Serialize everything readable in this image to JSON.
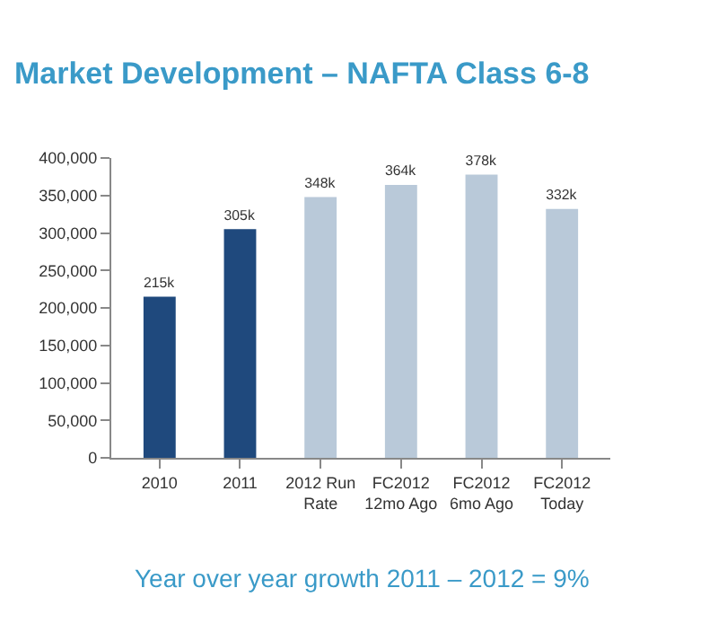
{
  "chart_data": {
    "type": "bar",
    "title": "Market Development – NAFTA Class 6-8",
    "categories": [
      "2010",
      "2011",
      "2012 Run\nRate",
      "FC2012\n12mo Ago",
      "FC2012\n6mo Ago",
      "FC2012\nToday"
    ],
    "values": [
      215000,
      305000,
      348000,
      364000,
      378000,
      332000
    ],
    "value_labels": [
      "215k",
      "305k",
      "348k",
      "364k",
      "378k",
      "332k"
    ],
    "colors": [
      "#1f497d",
      "#1f497d",
      "#b9c9d9",
      "#b9c9d9",
      "#b9c9d9",
      "#b9c9d9"
    ],
    "ylim": [
      0,
      400000
    ],
    "yticks": [
      {
        "value": 0,
        "label": "0"
      },
      {
        "value": 50000,
        "label": "50,000"
      },
      {
        "value": 100000,
        "label": "100,000"
      },
      {
        "value": 150000,
        "label": "150,000"
      },
      {
        "value": 200000,
        "label": "200,000"
      },
      {
        "value": 250000,
        "label": "250,000"
      },
      {
        "value": 300000,
        "label": "300,000"
      },
      {
        "value": 350000,
        "label": "350,000"
      },
      {
        "value": 400000,
        "label": "400,000"
      }
    ],
    "grid": false,
    "annotations": [
      "Year over year growth 2011 – 2012 = 9%"
    ]
  }
}
